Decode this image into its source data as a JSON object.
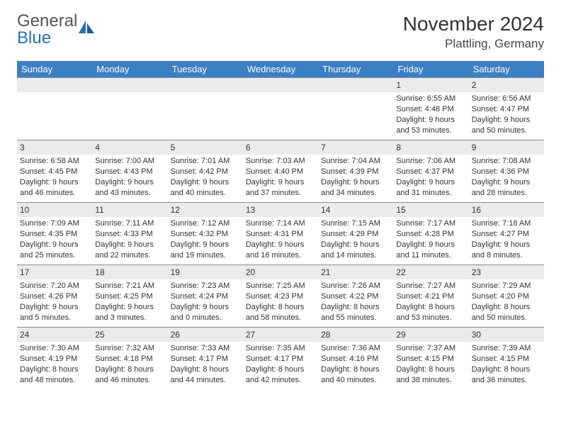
{
  "brand": {
    "word1": "General",
    "word2": "Blue"
  },
  "title": "November 2024",
  "location": "Plattling, Germany",
  "colors": {
    "header_bg": "#3b7fc4",
    "daynum_bg": "#e9ebed",
    "daynum_border": "#8a8f96",
    "text": "#333333",
    "brand_blue": "#2b6fb5"
  },
  "weekdays": [
    "Sunday",
    "Monday",
    "Tuesday",
    "Wednesday",
    "Thursday",
    "Friday",
    "Saturday"
  ],
  "weeks": [
    [
      {
        "n": "",
        "sr": "",
        "ss": "",
        "dl": ""
      },
      {
        "n": "",
        "sr": "",
        "ss": "",
        "dl": ""
      },
      {
        "n": "",
        "sr": "",
        "ss": "",
        "dl": ""
      },
      {
        "n": "",
        "sr": "",
        "ss": "",
        "dl": ""
      },
      {
        "n": "",
        "sr": "",
        "ss": "",
        "dl": ""
      },
      {
        "n": "1",
        "sr": "Sunrise: 6:55 AM",
        "ss": "Sunset: 4:48 PM",
        "dl": "Daylight: 9 hours and 53 minutes."
      },
      {
        "n": "2",
        "sr": "Sunrise: 6:56 AM",
        "ss": "Sunset: 4:47 PM",
        "dl": "Daylight: 9 hours and 50 minutes."
      }
    ],
    [
      {
        "n": "3",
        "sr": "Sunrise: 6:58 AM",
        "ss": "Sunset: 4:45 PM",
        "dl": "Daylight: 9 hours and 46 minutes."
      },
      {
        "n": "4",
        "sr": "Sunrise: 7:00 AM",
        "ss": "Sunset: 4:43 PM",
        "dl": "Daylight: 9 hours and 43 minutes."
      },
      {
        "n": "5",
        "sr": "Sunrise: 7:01 AM",
        "ss": "Sunset: 4:42 PM",
        "dl": "Daylight: 9 hours and 40 minutes."
      },
      {
        "n": "6",
        "sr": "Sunrise: 7:03 AM",
        "ss": "Sunset: 4:40 PM",
        "dl": "Daylight: 9 hours and 37 minutes."
      },
      {
        "n": "7",
        "sr": "Sunrise: 7:04 AM",
        "ss": "Sunset: 4:39 PM",
        "dl": "Daylight: 9 hours and 34 minutes."
      },
      {
        "n": "8",
        "sr": "Sunrise: 7:06 AM",
        "ss": "Sunset: 4:37 PM",
        "dl": "Daylight: 9 hours and 31 minutes."
      },
      {
        "n": "9",
        "sr": "Sunrise: 7:08 AM",
        "ss": "Sunset: 4:36 PM",
        "dl": "Daylight: 9 hours and 28 minutes."
      }
    ],
    [
      {
        "n": "10",
        "sr": "Sunrise: 7:09 AM",
        "ss": "Sunset: 4:35 PM",
        "dl": "Daylight: 9 hours and 25 minutes."
      },
      {
        "n": "11",
        "sr": "Sunrise: 7:11 AM",
        "ss": "Sunset: 4:33 PM",
        "dl": "Daylight: 9 hours and 22 minutes."
      },
      {
        "n": "12",
        "sr": "Sunrise: 7:12 AM",
        "ss": "Sunset: 4:32 PM",
        "dl": "Daylight: 9 hours and 19 minutes."
      },
      {
        "n": "13",
        "sr": "Sunrise: 7:14 AM",
        "ss": "Sunset: 4:31 PM",
        "dl": "Daylight: 9 hours and 16 minutes."
      },
      {
        "n": "14",
        "sr": "Sunrise: 7:15 AM",
        "ss": "Sunset: 4:29 PM",
        "dl": "Daylight: 9 hours and 14 minutes."
      },
      {
        "n": "15",
        "sr": "Sunrise: 7:17 AM",
        "ss": "Sunset: 4:28 PM",
        "dl": "Daylight: 9 hours and 11 minutes."
      },
      {
        "n": "16",
        "sr": "Sunrise: 7:18 AM",
        "ss": "Sunset: 4:27 PM",
        "dl": "Daylight: 9 hours and 8 minutes."
      }
    ],
    [
      {
        "n": "17",
        "sr": "Sunrise: 7:20 AM",
        "ss": "Sunset: 4:26 PM",
        "dl": "Daylight: 9 hours and 5 minutes."
      },
      {
        "n": "18",
        "sr": "Sunrise: 7:21 AM",
        "ss": "Sunset: 4:25 PM",
        "dl": "Daylight: 9 hours and 3 minutes."
      },
      {
        "n": "19",
        "sr": "Sunrise: 7:23 AM",
        "ss": "Sunset: 4:24 PM",
        "dl": "Daylight: 9 hours and 0 minutes."
      },
      {
        "n": "20",
        "sr": "Sunrise: 7:25 AM",
        "ss": "Sunset: 4:23 PM",
        "dl": "Daylight: 8 hours and 58 minutes."
      },
      {
        "n": "21",
        "sr": "Sunrise: 7:26 AM",
        "ss": "Sunset: 4:22 PM",
        "dl": "Daylight: 8 hours and 55 minutes."
      },
      {
        "n": "22",
        "sr": "Sunrise: 7:27 AM",
        "ss": "Sunset: 4:21 PM",
        "dl": "Daylight: 8 hours and 53 minutes."
      },
      {
        "n": "23",
        "sr": "Sunrise: 7:29 AM",
        "ss": "Sunset: 4:20 PM",
        "dl": "Daylight: 8 hours and 50 minutes."
      }
    ],
    [
      {
        "n": "24",
        "sr": "Sunrise: 7:30 AM",
        "ss": "Sunset: 4:19 PM",
        "dl": "Daylight: 8 hours and 48 minutes."
      },
      {
        "n": "25",
        "sr": "Sunrise: 7:32 AM",
        "ss": "Sunset: 4:18 PM",
        "dl": "Daylight: 8 hours and 46 minutes."
      },
      {
        "n": "26",
        "sr": "Sunrise: 7:33 AM",
        "ss": "Sunset: 4:17 PM",
        "dl": "Daylight: 8 hours and 44 minutes."
      },
      {
        "n": "27",
        "sr": "Sunrise: 7:35 AM",
        "ss": "Sunset: 4:17 PM",
        "dl": "Daylight: 8 hours and 42 minutes."
      },
      {
        "n": "28",
        "sr": "Sunrise: 7:36 AM",
        "ss": "Sunset: 4:16 PM",
        "dl": "Daylight: 8 hours and 40 minutes."
      },
      {
        "n": "29",
        "sr": "Sunrise: 7:37 AM",
        "ss": "Sunset: 4:15 PM",
        "dl": "Daylight: 8 hours and 38 minutes."
      },
      {
        "n": "30",
        "sr": "Sunrise: 7:39 AM",
        "ss": "Sunset: 4:15 PM",
        "dl": "Daylight: 8 hours and 36 minutes."
      }
    ]
  ]
}
